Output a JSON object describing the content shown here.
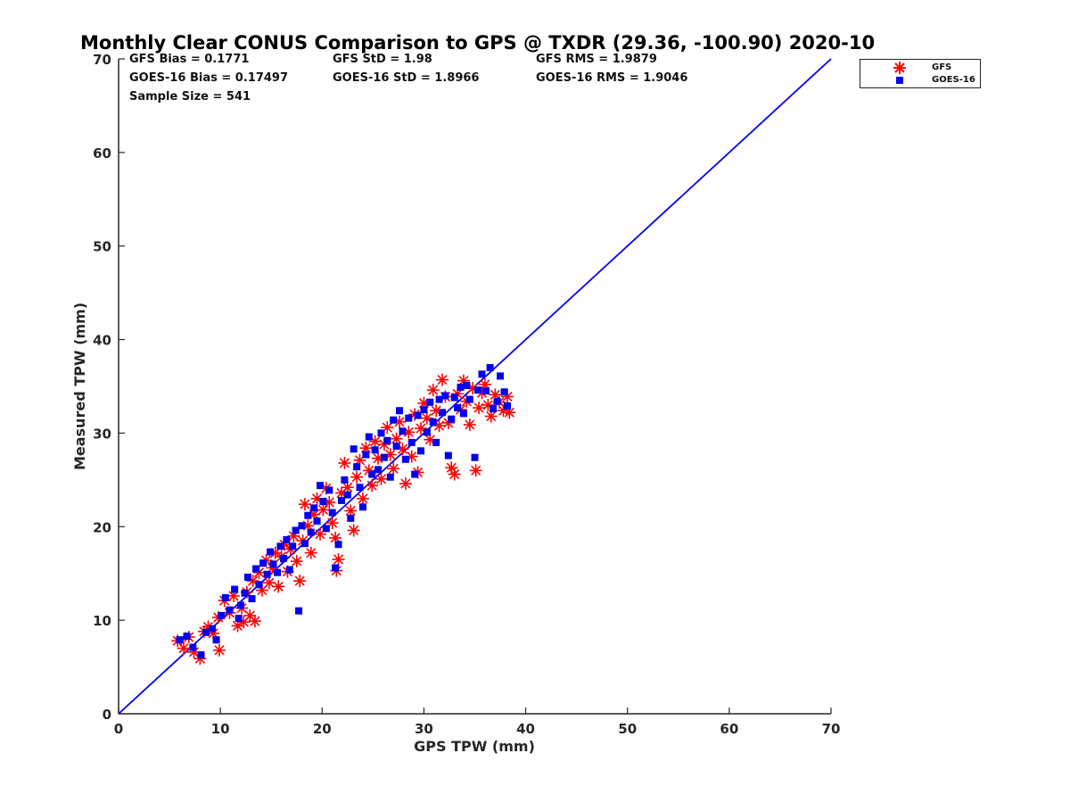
{
  "chart_data": {
    "type": "scatter",
    "title": "Monthly Clear CONUS Comparison to GPS @ TXDR (29.36, -100.90) 2020-10",
    "xlabel": "GPS TPW (mm)",
    "ylabel": "Measured TPW (mm)",
    "xlim": [
      0,
      70
    ],
    "ylim": [
      0,
      70
    ],
    "xticks": [
      0,
      10,
      20,
      30,
      40,
      50,
      60,
      70
    ],
    "yticks": [
      0,
      10,
      20,
      30,
      40,
      50,
      60,
      70
    ],
    "grid": false,
    "legend_position": "top-right-outside",
    "stats": {
      "gfs_bias": "GFS Bias = 0.1771",
      "goes_bias": "GOES-16 Bias = 0.17497",
      "sample_size": "Sample Size = 541",
      "gfs_std": "GFS StD = 1.98",
      "goes_std": "GOES-16 StD = 1.8966",
      "gfs_rms": "GFS RMS = 1.9879",
      "goes_rms": "GOES-16 RMS = 1.9046"
    },
    "reference_line": {
      "name": "1:1 line",
      "x": [
        0,
        70
      ],
      "y": [
        0,
        70
      ],
      "color": "#0000ee"
    },
    "series": [
      {
        "name": "GFS",
        "marker": "asterisk",
        "color": "#ff0000",
        "points": [
          [
            5.8,
            7.8
          ],
          [
            6.4,
            7.0
          ],
          [
            6.9,
            8.2
          ],
          [
            7.4,
            6.6
          ],
          [
            8.0,
            5.9
          ],
          [
            8.4,
            8.8
          ],
          [
            8.8,
            9.3
          ],
          [
            9.3,
            8.6
          ],
          [
            9.9,
            6.8
          ],
          [
            9.8,
            10.3
          ],
          [
            10.4,
            12.1
          ],
          [
            10.9,
            10.8
          ],
          [
            11.3,
            12.6
          ],
          [
            11.7,
            9.4
          ],
          [
            12.1,
            11.3
          ],
          [
            12.3,
            9.8
          ],
          [
            12.6,
            13.0
          ],
          [
            12.9,
            10.5
          ],
          [
            13.2,
            14.2
          ],
          [
            13.4,
            9.9
          ],
          [
            13.8,
            15.1
          ],
          [
            14.1,
            13.2
          ],
          [
            14.5,
            16.4
          ],
          [
            14.8,
            14.0
          ],
          [
            15.1,
            15.6
          ],
          [
            15.4,
            17.2
          ],
          [
            15.7,
            13.6
          ],
          [
            16.0,
            16.8
          ],
          [
            16.3,
            18.1
          ],
          [
            16.6,
            15.2
          ],
          [
            16.9,
            17.6
          ],
          [
            17.2,
            19.0
          ],
          [
            17.5,
            16.3
          ],
          [
            17.8,
            14.2
          ],
          [
            18.1,
            18.5
          ],
          [
            18.3,
            22.4
          ],
          [
            18.6,
            20.1
          ],
          [
            18.9,
            17.2
          ],
          [
            19.2,
            21.3
          ],
          [
            19.5,
            23.0
          ],
          [
            19.8,
            19.2
          ],
          [
            20.1,
            21.8
          ],
          [
            20.4,
            24.1
          ],
          [
            20.7,
            22.6
          ],
          [
            21.0,
            20.4
          ],
          [
            21.3,
            18.8
          ],
          [
            21.6,
            16.5
          ],
          [
            21.4,
            15.3
          ],
          [
            21.9,
            23.6
          ],
          [
            22.2,
            26.8
          ],
          [
            22.5,
            24.2
          ],
          [
            22.8,
            21.7
          ],
          [
            23.1,
            19.6
          ],
          [
            23.4,
            25.3
          ],
          [
            23.7,
            27.1
          ],
          [
            24.0,
            23.0
          ],
          [
            24.3,
            28.4
          ],
          [
            24.6,
            26.0
          ],
          [
            24.9,
            24.4
          ],
          [
            25.2,
            29.1
          ],
          [
            25.5,
            27.3
          ],
          [
            25.8,
            25.1
          ],
          [
            26.1,
            28.8
          ],
          [
            26.4,
            30.6
          ],
          [
            26.7,
            27.7
          ],
          [
            27.0,
            26.2
          ],
          [
            27.3,
            29.4
          ],
          [
            27.6,
            31.2
          ],
          [
            27.9,
            28.3
          ],
          [
            28.2,
            24.6
          ],
          [
            28.5,
            30.1
          ],
          [
            28.8,
            27.5
          ],
          [
            29.1,
            32.0
          ],
          [
            29.4,
            25.8
          ],
          [
            29.7,
            30.5
          ],
          [
            30.0,
            33.2
          ],
          [
            30.3,
            31.6
          ],
          [
            30.6,
            29.3
          ],
          [
            30.9,
            34.6
          ],
          [
            31.2,
            32.4
          ],
          [
            31.5,
            30.8
          ],
          [
            31.8,
            35.7
          ],
          [
            32.1,
            33.9
          ],
          [
            32.4,
            31.1
          ],
          [
            32.7,
            26.3
          ],
          [
            33.0,
            25.6
          ],
          [
            33.3,
            34.2
          ],
          [
            33.6,
            32.5
          ],
          [
            33.9,
            35.6
          ],
          [
            34.2,
            33.4
          ],
          [
            34.5,
            30.9
          ],
          [
            34.8,
            34.8
          ],
          [
            35.1,
            26.0
          ],
          [
            35.4,
            32.7
          ],
          [
            35.7,
            34.3
          ],
          [
            36.0,
            35.2
          ],
          [
            36.3,
            33.0
          ],
          [
            36.6,
            31.8
          ],
          [
            37.0,
            34.1
          ],
          [
            37.4,
            33.3
          ],
          [
            37.8,
            32.4
          ],
          [
            38.2,
            33.9
          ],
          [
            38.4,
            32.2
          ]
        ]
      },
      {
        "name": "GOES-16",
        "marker": "square",
        "color": "#0000ee",
        "points": [
          [
            6.0,
            7.9
          ],
          [
            6.7,
            8.3
          ],
          [
            7.3,
            7.1
          ],
          [
            8.1,
            6.3
          ],
          [
            8.6,
            8.7
          ],
          [
            9.2,
            9.1
          ],
          [
            9.6,
            7.9
          ],
          [
            10.1,
            10.5
          ],
          [
            10.5,
            12.4
          ],
          [
            10.9,
            11.1
          ],
          [
            11.4,
            13.3
          ],
          [
            11.8,
            10.2
          ],
          [
            12.0,
            11.6
          ],
          [
            12.4,
            12.9
          ],
          [
            12.7,
            14.6
          ],
          [
            13.1,
            12.3
          ],
          [
            13.5,
            15.5
          ],
          [
            13.8,
            13.8
          ],
          [
            14.2,
            16.1
          ],
          [
            14.6,
            14.9
          ],
          [
            14.9,
            17.3
          ],
          [
            15.2,
            16.0
          ],
          [
            15.6,
            15.1
          ],
          [
            15.9,
            17.9
          ],
          [
            16.2,
            16.6
          ],
          [
            16.5,
            18.6
          ],
          [
            16.8,
            15.4
          ],
          [
            17.1,
            17.9
          ],
          [
            17.4,
            19.6
          ],
          [
            17.7,
            11.0
          ],
          [
            18.0,
            20.1
          ],
          [
            18.3,
            18.2
          ],
          [
            18.6,
            21.2
          ],
          [
            18.9,
            19.4
          ],
          [
            19.2,
            22.0
          ],
          [
            19.5,
            20.6
          ],
          [
            19.8,
            24.4
          ],
          [
            20.1,
            22.7
          ],
          [
            20.4,
            19.8
          ],
          [
            20.7,
            23.9
          ],
          [
            21.0,
            21.5
          ],
          [
            21.3,
            15.6
          ],
          [
            21.6,
            18.1
          ],
          [
            21.9,
            22.8
          ],
          [
            22.2,
            25.0
          ],
          [
            22.5,
            23.4
          ],
          [
            22.8,
            20.9
          ],
          [
            23.1,
            28.3
          ],
          [
            23.4,
            26.4
          ],
          [
            23.7,
            24.2
          ],
          [
            24.0,
            22.1
          ],
          [
            24.3,
            27.7
          ],
          [
            24.6,
            29.6
          ],
          [
            24.9,
            25.6
          ],
          [
            25.2,
            28.2
          ],
          [
            25.5,
            26.1
          ],
          [
            25.8,
            30.0
          ],
          [
            26.1,
            27.4
          ],
          [
            26.4,
            29.2
          ],
          [
            26.7,
            25.3
          ],
          [
            27.0,
            31.4
          ],
          [
            27.3,
            28.6
          ],
          [
            27.6,
            32.4
          ],
          [
            27.9,
            30.2
          ],
          [
            28.2,
            27.2
          ],
          [
            28.5,
            31.6
          ],
          [
            28.8,
            29.0
          ],
          [
            29.1,
            25.6
          ],
          [
            29.4,
            31.9
          ],
          [
            29.7,
            28.1
          ],
          [
            30.0,
            32.5
          ],
          [
            30.3,
            30.1
          ],
          [
            30.6,
            33.3
          ],
          [
            30.9,
            31.2
          ],
          [
            31.2,
            29.0
          ],
          [
            31.5,
            33.6
          ],
          [
            31.8,
            32.2
          ],
          [
            32.1,
            34.0
          ],
          [
            32.4,
            27.6
          ],
          [
            32.7,
            31.5
          ],
          [
            33.0,
            33.8
          ],
          [
            33.3,
            32.7
          ],
          [
            33.6,
            34.9
          ],
          [
            33.9,
            32.1
          ],
          [
            34.2,
            35.1
          ],
          [
            34.5,
            33.6
          ],
          [
            35.0,
            27.4
          ],
          [
            35.3,
            34.6
          ],
          [
            35.7,
            36.3
          ],
          [
            36.1,
            34.5
          ],
          [
            36.5,
            37.0
          ],
          [
            36.8,
            32.6
          ],
          [
            37.2,
            33.4
          ],
          [
            37.5,
            36.1
          ],
          [
            37.9,
            34.4
          ],
          [
            38.2,
            32.9
          ]
        ]
      }
    ]
  },
  "legend": {
    "items": [
      {
        "label": "GFS"
      },
      {
        "label": "GOES-16"
      }
    ]
  }
}
